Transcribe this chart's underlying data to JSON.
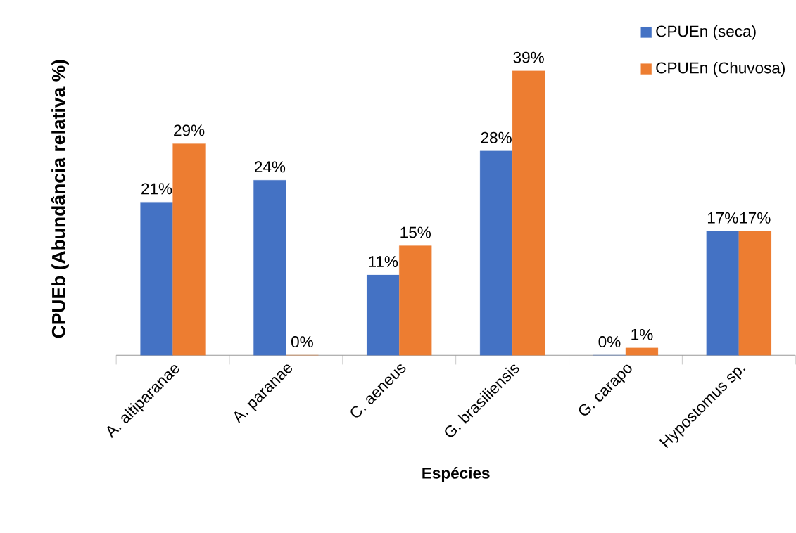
{
  "chart_data": {
    "type": "bar",
    "xlabel": "Espécies",
    "ylabel": "CPUEb (Abundância relativa %)",
    "categories": [
      "A. altiparanae",
      "A. paranae",
      "C. aeneus",
      "G. brasiliensis",
      "G. carapo",
      "Hypostomus sp."
    ],
    "series": [
      {
        "name": "CPUEn (seca)",
        "color": "#4472c4",
        "values": [
          21,
          24,
          11,
          28,
          0,
          17
        ],
        "value_labels": [
          "21%",
          "24%",
          "11%",
          "28%",
          "0%",
          "17%"
        ]
      },
      {
        "name": "CPUEn (Chuvosa)",
        "color": "#ed7d31",
        "values": [
          29,
          0,
          15,
          39,
          1,
          17
        ],
        "value_labels": [
          "29%",
          "0%",
          "15%",
          "39%",
          "1%",
          "17%"
        ]
      }
    ],
    "legend": "top right"
  }
}
